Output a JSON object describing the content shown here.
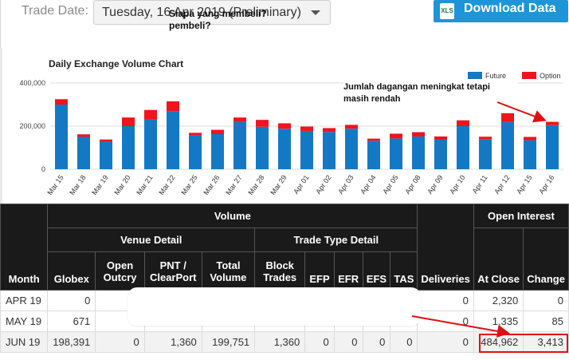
{
  "header": {
    "trade_date_label": "Trade Date:",
    "trade_date_value": "Tuesday, 16 Apr 2019 (Preliminary)",
    "download_icon_text": "XLS",
    "download_label": "Download Data"
  },
  "chart_data": {
    "type": "bar",
    "title": "Daily Exchange Volume Chart",
    "categories": [
      "Mar 15",
      "Mar 18",
      "Mar 19",
      "Mar 20",
      "Mar 21",
      "Mar 22",
      "Mar 25",
      "Mar 26",
      "Mar 27",
      "Mar 28",
      "Mar 29",
      "Apr 01",
      "Apr 02",
      "Apr 03",
      "Apr 04",
      "Apr 05",
      "Apr 08",
      "Apr 09",
      "Apr 10",
      "Apr 11",
      "Apr 12",
      "Apr 15",
      "Apr 16"
    ],
    "stacked": true,
    "series": [
      {
        "name": "Future",
        "color": "#1479c4",
        "values": [
          300000,
          150000,
          128000,
          200000,
          230000,
          270000,
          157000,
          163000,
          220000,
          197000,
          188000,
          178000,
          173000,
          188000,
          132000,
          143000,
          152000,
          137000,
          200000,
          138000,
          220000,
          135000,
          205000
        ]
      },
      {
        "name": "Option",
        "color": "#f2131d",
        "values": [
          25000,
          12000,
          10000,
          40000,
          45000,
          45000,
          12000,
          20000,
          20000,
          32000,
          25000,
          20000,
          18000,
          18000,
          10000,
          22000,
          20000,
          15000,
          27000,
          13000,
          40000,
          15000,
          15000
        ]
      }
    ],
    "yticks": [
      "0",
      "200,000",
      "400,000"
    ],
    "ylim": [
      0,
      400000
    ],
    "legend_position": "top-right",
    "grid": true
  },
  "annotations": {
    "chart_note": "Jumlah dagangan meningkat tetapi masih rendah",
    "table_note": "Siapa yang membeli? pembeli?"
  },
  "table": {
    "group_volume": "Volume",
    "group_venue": "Venue Detail",
    "group_trade_type": "Trade Type Detail",
    "group_open_interest": "Open Interest",
    "col_month": "Month",
    "col_globex": "Globex",
    "col_open_outcry": "Open Outcry",
    "col_pnt": "PNT / ClearPort",
    "col_total_volume": "Total Volume",
    "col_block_trades": "Block Trades",
    "col_efp": "EFP",
    "col_efr": "EFR",
    "col_efs": "EFS",
    "col_tas": "TAS",
    "col_deliveries": "Deliveries",
    "col_at_close": "At Close",
    "col_change": "Change",
    "rows": [
      {
        "month": "APR 19",
        "globex": "0",
        "open_outcry": "",
        "pnt": "",
        "total_volume": "",
        "block_trades": "",
        "efp": "",
        "efr": "",
        "efs": "",
        "tas": "",
        "deliveries": "0",
        "at_close": "2,320",
        "change": "0"
      },
      {
        "month": "MAY 19",
        "globex": "671",
        "open_outcry": "",
        "pnt": "",
        "total_volume": "",
        "block_trades": "",
        "efp": "",
        "efr": "",
        "efs": "",
        "tas": "",
        "deliveries": "0",
        "at_close": "1,335",
        "change": "85"
      },
      {
        "month": "JUN 19",
        "globex": "198,391",
        "open_outcry": "0",
        "pnt": "1,360",
        "total_volume": "199,751",
        "block_trades": "1,360",
        "efp": "0",
        "efr": "0",
        "efs": "0",
        "tas": "0",
        "deliveries": "0",
        "at_close": "484,962",
        "change": "3,413"
      }
    ]
  }
}
